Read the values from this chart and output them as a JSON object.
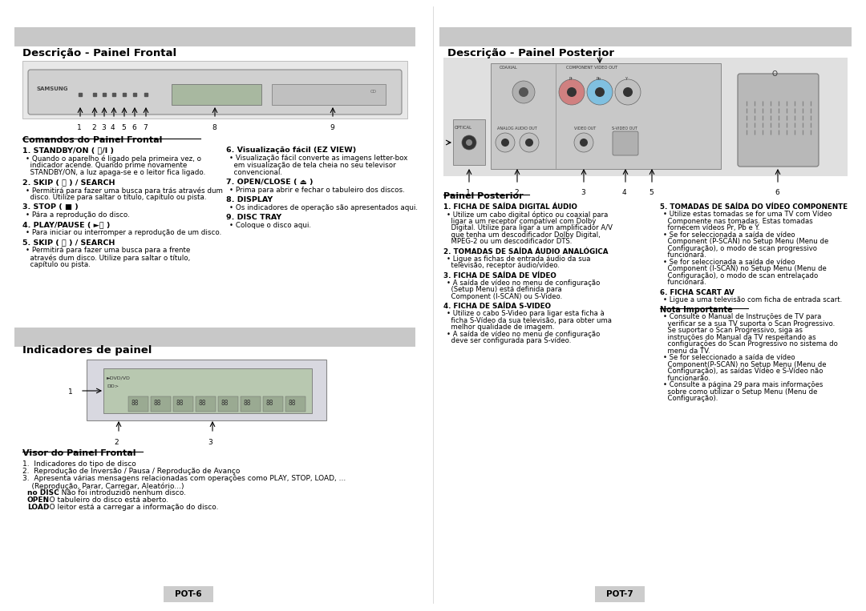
{
  "bg_color": "#ffffff",
  "page_bg": "#ffffff",
  "header_bg": "#c8c8c8",
  "section_bg": "#e8e8e8",
  "image_bg": "#e0e0e0",
  "border_color": "#999999",
  "text_color": "#000000",
  "left_section_title": "Descrição - Painel Frontal",
  "right_section_title": "Descrição - Painel Posterior",
  "bottom_left_section_title": "Indicadores de painel",
  "commands_title": "Comandos do Painel Frontal",
  "visor_title": "Visor do Painel Frontal",
  "painel_posterior_title": "Painel Posterior",
  "commands_left": [
    [
      "1. STANDBY/ON ( ⏻/I )",
      "• Quando o aparelho é ligado pela primeira vez, o\n  indicador acende. Quando prime novamente\n  STANDBY/ON, a luz apaga-se e o leitor fica ligado."
    ],
    [
      "2. SKIP ( ⏮ ) / SEARCH",
      "• Permitirá para fazer uma busca para trás através dum\n  disco. Utilize para saltar o título, capítulo ou pista."
    ],
    [
      "3. STOP ( ■ )",
      "• Pára a reprodução do disco."
    ],
    [
      "4. PLAY/PAUSE ( ►⏸ )",
      "• Para iniciar ou interromper a reprodução de um disco."
    ],
    [
      "5. SKIP ( ⏭ ) / SEARCH",
      "• Permitirá para fazer uma busca para a frente\n  através dum disco. Utilize para saltar o título,\n  capítulo ou pista."
    ]
  ],
  "commands_right": [
    [
      "6. Visualização fácil (EZ VIEW)",
      "• Visualização fácil converte as imagens letter-box\n  em visualização de tela cheia no seu televisor\n  convencional."
    ],
    [
      "7. OPEN/CLOSE ( ⏏ )",
      "• Prima para abrir e fechar o tabuleiro dos discos."
    ],
    [
      "8. DISPLAY",
      "• Os indicadores de operação são apresentados aqui."
    ],
    [
      "9. DISC TRAY",
      "• Coloque o disco aqui."
    ]
  ],
  "visor_items": [
    "1.  Indicadores do tipo de disco",
    "2.  Reprodução de Inversão / Pausa / Reprodução de Avanço",
    "3.  Apresenta várias mensagens relacionadas com operações como PLAY, STOP, LOAD, ...\n    (Reprodução, Parar, Carregar, Aleatório...)\n    no DISC : Não foi introduzido nenhum disco.\n    OPEN : O tabuleiro do disco está aberto.\n    LOAD : O leitor está a carregar a informação do disco."
  ],
  "posterior_left": [
    [
      "1. FICHA DE SAÍDA DIGITAL ÁUDIO",
      "• Utilize um cabo digital óptico ou coaxial para\n  ligar a um receptor compatível com Dolby\n  Digital. Utilize para ligar a um amplificador A/V\n  que tenha um descodificador Dolby Digital,\n  MPEG-2 ou um descodificador DTS."
    ],
    [
      "2. TOMADAS DE SAÍDA ÁUDIO ANALÓGICA",
      "• Ligue as fichas de entrada áudio da sua\n  televisão, receptor áudio/vídeo."
    ],
    [
      "3. FICHA DE SAÍDA DE VÍDEO",
      "• A saída de vídeo no menu de configuração\n  (Setup Menu) está definida para\n  Component (I-SCAN) ou S-Video."
    ],
    [
      "4. FICHA DE SAÍDA S-VIDEO",
      "• Utilize o cabo S-Video para ligar esta ficha à\n  ficha S-Vídeo da sua televisão, para obter uma\n  melhor qualidade de imagem.\n• A saída de vídeo no menu de configuração\n  deve ser configurada para S-vídeo."
    ]
  ],
  "posterior_right": [
    [
      "5. TOMADAS DE SAÍDA DO VÍDEO COMPONENTE",
      "• Utilize estas tomadas se for uma TV com Vídeo\n  Componente nas tomadas. Estas tomadas\n  fornecem vídeos Pr, Pb e Y.\n• Se for seleccionada a saída de vídeo\n  Component (P-SCAN) no Setup Menu (Menu de\n  Configuração), o modo de scan progressivo\n  funcionará.\n• Se for seleccionada a saída de vídeo\n  Component (I-SCAN) no Setup Menu (Menu de\n  Configuração), o modo de scan entrelaçado\n  funcionará."
    ],
    [
      "6. FICHA SCART AV",
      "• Ligue a uma televisão com ficha de entrada scart."
    ],
    [
      "Nota Importante",
      "• Consulte o Manual de Instruções de TV para\n  verificar se a sua TV suporta o Scan Progressivo.\n  Se suportar o Scan Progressivo, siga as\n  instruções do Manual da TV respeitando as\n  configurações do Scan Progressivo no sistema do\n  menu da TV.\n• Se for seleccionado a saída de vídeo\n  Component(P-SCAN) no Setup Menu (Menu de\n  Configuração), as saídas Vídeo e S-Vídeo não\n  funcionarão.\n• Consulte a página 29 para mais informações\n  sobre como utilizar o Setup Menu (Menu de\n  Configuração)."
    ]
  ],
  "page_left": "POT-6",
  "page_right": "POT-7"
}
